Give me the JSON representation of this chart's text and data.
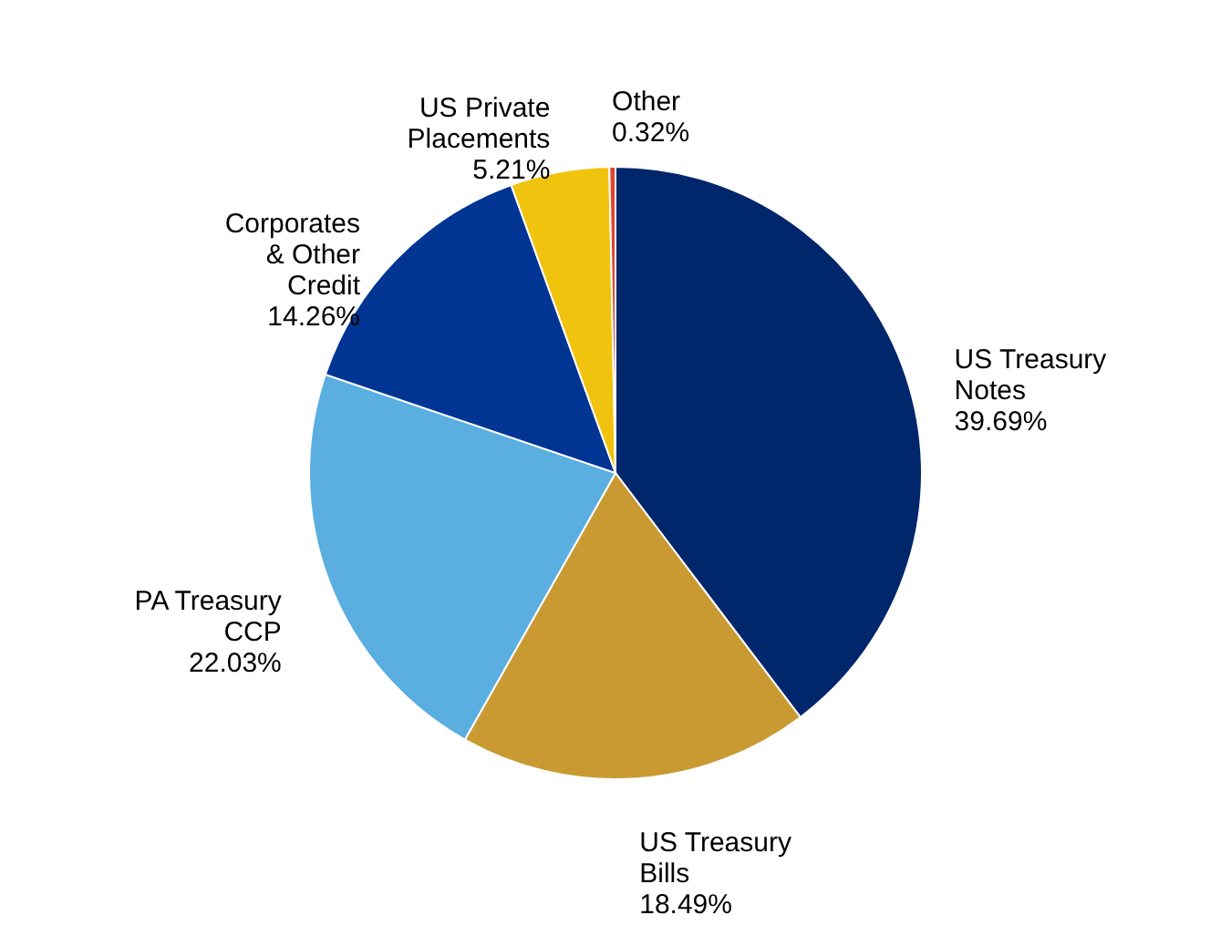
{
  "chart_data": {
    "type": "pie",
    "categories": [
      "US Treasury Notes",
      "US Treasury Bills",
      "PA Treasury CCP",
      "Corporates & Other Credit",
      "US Private Placements",
      "Other"
    ],
    "values": [
      39.69,
      18.49,
      22.03,
      14.26,
      5.21,
      0.32
    ],
    "colors": [
      "#00266b",
      "#c99a32",
      "#5aaee0",
      "#003594",
      "#f0c30f",
      "#e0452f"
    ],
    "value_labels": [
      "39.69%",
      "18.49%",
      "22.03%",
      "14.26%",
      "5.21%",
      "0.32%"
    ]
  }
}
